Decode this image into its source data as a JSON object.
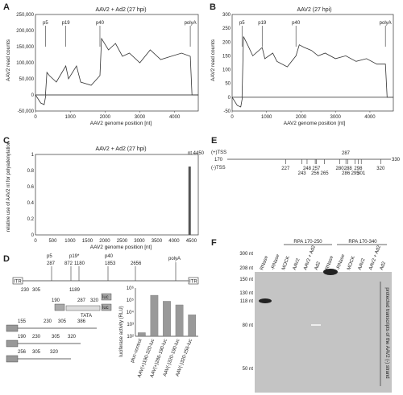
{
  "panels": {
    "A": {
      "letter": "A",
      "title": "AAV2 + Ad2 (27 hpi)",
      "ylabel": "AAV2 read counts",
      "xlabel": "AAV2 genome position [nt]",
      "yticks": [
        "250,000",
        "200,000",
        "150,000",
        "100,000",
        "50,000",
        "0",
        "-50,000"
      ],
      "xticks": [
        "0",
        "1000",
        "2000",
        "3000",
        "4000"
      ],
      "markers": [
        "p5",
        "p19",
        "p40",
        "polyA"
      ]
    },
    "B": {
      "letter": "B",
      "title": "AAV2 (27 hpi)",
      "ylabel": "AAV2 read counts",
      "xlabel": "AAV2 genome position [nt]",
      "yticks": [
        "300",
        "250",
        "200",
        "150",
        "100",
        "50",
        "0",
        "-50"
      ],
      "xticks": [
        "0",
        "1000",
        "2000",
        "3000",
        "4000"
      ],
      "markers": [
        "p5",
        "p19",
        "p40",
        "polyA"
      ]
    },
    "C": {
      "letter": "C",
      "title": "AAV2 + Ad2 (27 hpi)",
      "ylabel": "relative use of AAV2 nt for polyadenylation",
      "xlabel": "AAV2 genome position [nt]",
      "annotation": "nt 4450",
      "yticks": [
        "1",
        "0.8",
        "0.6",
        "0.4",
        "0.2",
        "0"
      ],
      "xticks": [
        "0",
        "500",
        "1000",
        "1500",
        "2000",
        "2500",
        "3000",
        "3500",
        "4000",
        "4500"
      ]
    },
    "D": {
      "letter": "D",
      "map_labels": [
        "p5",
        "p19*",
        "p40",
        "polyA",
        "ITR",
        "ITR",
        "TATA",
        "luc",
        "luc"
      ],
      "map_positions": [
        "287",
        "872",
        "1180",
        "1853",
        "2656",
        "1189"
      ],
      "constructs": [
        [
          "230",
          "305"
        ],
        [
          "190",
          "287",
          "320"
        ],
        [
          "155",
          "230",
          "305",
          "386"
        ],
        [
          "190",
          "230",
          "305",
          "320"
        ],
        [
          "256",
          "305",
          "320"
        ]
      ],
      "bar_ylabel": "luciferase activity (RLU)",
      "bar_yticks": [
        "10⁶",
        "10⁵",
        "10⁴",
        "10³",
        "10²"
      ],
      "bar_categories": [
        "pluc-control",
        "AAV(+)190-320-luc",
        "AAV(+)286-190-luc",
        "AAV(-)320-190-luc",
        "AAV(-)320-256-luc"
      ]
    },
    "E": {
      "letter": "E",
      "rows": [
        "(+)TSS",
        "170",
        "(-)TSS"
      ],
      "end": "330",
      "positions_top": [
        "287"
      ],
      "positions_bottom": [
        "227",
        "243",
        "248",
        "256",
        "257",
        "265",
        "280",
        "286",
        "288",
        "295",
        "298",
        "301",
        "320"
      ]
    },
    "F": {
      "letter": "F",
      "groups": [
        "RPA 170-250",
        "RPA 170-340"
      ],
      "lanes": [
        "RNase",
        "-RNase",
        "MOCK",
        "AAV2",
        "AAV2 + Ad2",
        "Ad2",
        "RNase",
        "-RNase",
        "MOCK",
        "AAV2",
        "AAV2 + Ad2",
        "Ad2"
      ],
      "sizes": [
        "300 nt",
        "208 nt",
        "150 nt",
        "130 nt",
        "118 nt",
        "80 nt",
        "50 nt"
      ],
      "side_label": "protected transcripts of the AAV2 (-) strand"
    }
  },
  "chart_data": [
    {
      "type": "line",
      "title": "AAV2 + Ad2 (27 hpi)",
      "xlabel": "AAV2 genome position [nt]",
      "ylabel": "AAV2 read counts",
      "xlim": [
        0,
        4680
      ],
      "ylim": [
        -50000,
        250000
      ],
      "series": [
        {
          "x": [
            0,
            150,
            287,
            330,
            400,
            600,
            872,
            950,
            1180,
            1300,
            1600,
            1853,
            1900,
            2100,
            2300,
            2500,
            2700,
            3000,
            3300,
            3600,
            3900,
            4200,
            4450,
            4500,
            4680
          ],
          "y": [
            0,
            0,
            0,
            70000,
            60000,
            40000,
            90000,
            50000,
            90000,
            40000,
            30000,
            60000,
            175000,
            140000,
            160000,
            120000,
            130000,
            100000,
            140000,
            110000,
            120000,
            130000,
            120000,
            0,
            0
          ]
        },
        {
          "x": [
            0,
            150,
            250,
            300,
            4680
          ],
          "y": [
            0,
            -25000,
            -30000,
            0,
            0
          ]
        }
      ]
    },
    {
      "type": "line",
      "title": "AAV2 (27 hpi)",
      "xlabel": "AAV2 genome position [nt]",
      "ylabel": "AAV2 read counts",
      "xlim": [
        0,
        4680
      ],
      "ylim": [
        -50,
        300
      ],
      "series": [
        {
          "x": [
            0,
            150,
            287,
            330,
            450,
            600,
            872,
            950,
            1180,
            1300,
            1600,
            1853,
            1950,
            2100,
            2300,
            2500,
            2700,
            3000,
            3300,
            3600,
            3900,
            4200,
            4450,
            4500,
            4680
          ],
          "y": [
            0,
            0,
            0,
            220,
            190,
            150,
            180,
            140,
            160,
            130,
            110,
            150,
            190,
            180,
            170,
            150,
            160,
            140,
            150,
            130,
            140,
            120,
            120,
            0,
            0
          ]
        },
        {
          "x": [
            0,
            150,
            250,
            300,
            4680
          ],
          "y": [
            0,
            -30,
            -35,
            0,
            0
          ]
        }
      ]
    },
    {
      "type": "bar",
      "title": "AAV2 + Ad2 (27 hpi)",
      "xlabel": "AAV2 genome position [nt]",
      "ylabel": "relative use of AAV2 nt for polyadenylation",
      "xlim": [
        0,
        4700
      ],
      "ylim": [
        0,
        1
      ],
      "x": [
        4450
      ],
      "values": [
        0.85
      ]
    },
    {
      "type": "bar",
      "ylabel": "luciferase activity (RLU)",
      "log_scale": true,
      "categories": [
        "pluc-control",
        "AAV(+)190-320-luc",
        "AAV(+)286-190-luc",
        "AAV(-)320-190-luc",
        "AAV(-)320-256-luc"
      ],
      "values": [
        200,
        250000,
        80000,
        40000,
        6000
      ]
    }
  ]
}
